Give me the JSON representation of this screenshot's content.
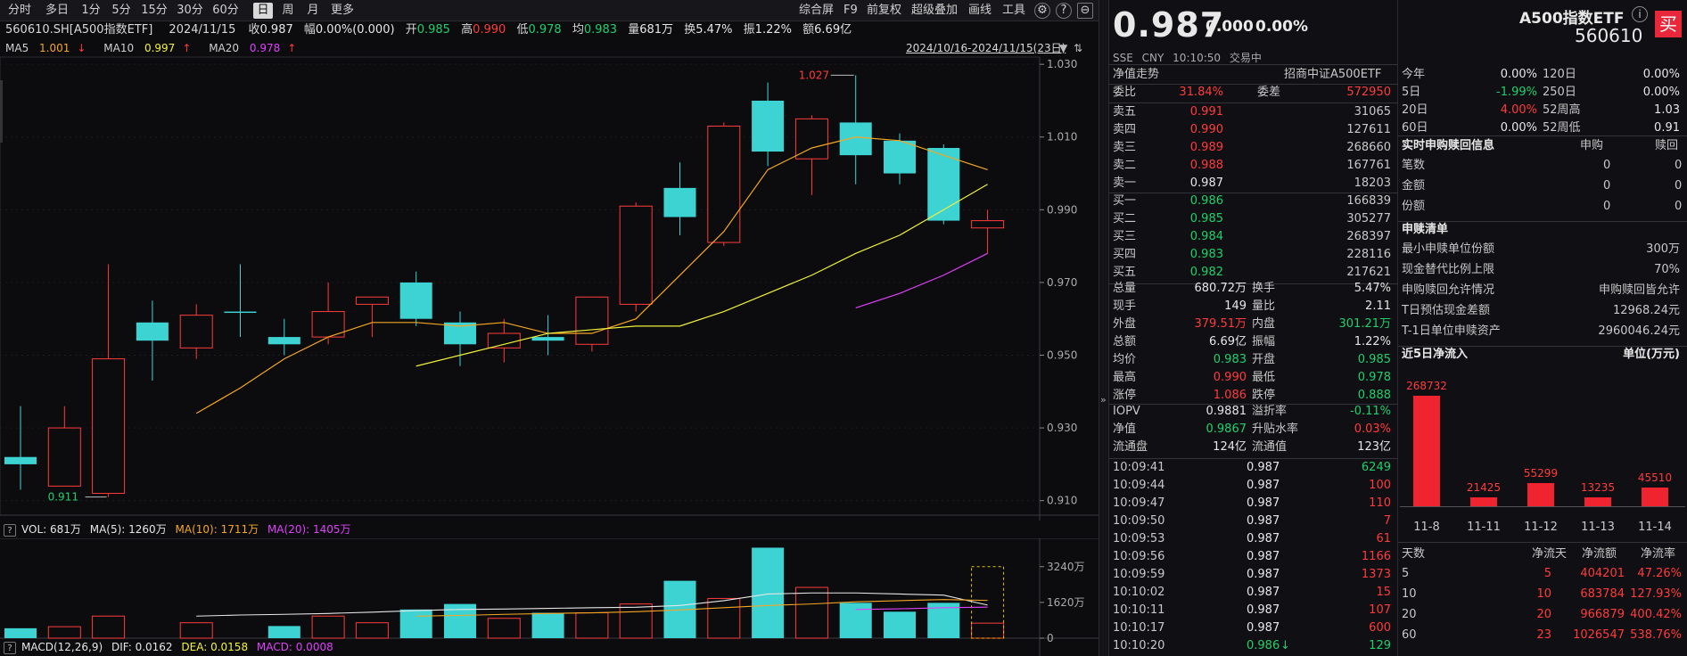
{
  "toolbar": {
    "periods": [
      "分时",
      "多日",
      "1分",
      "5分",
      "15分",
      "30分",
      "60分",
      "日",
      "周",
      "月",
      "更多"
    ],
    "active_period": "日",
    "tools": [
      "综合屏",
      "F9",
      "前复权",
      "超级叠加",
      "画线",
      "工具"
    ]
  },
  "infobar": {
    "code": "560610.SH[A500指数ETF]",
    "date": "2024/11/15",
    "close_label": "收",
    "close": "0.987",
    "change_label": "幅",
    "change": "0.00%(0.000)",
    "open_label": "开",
    "open": "0.985",
    "high_label": "高",
    "high": "0.990",
    "low_label": "低",
    "low": "0.978",
    "avg_label": "均",
    "avg": "0.983",
    "vol_label": "量",
    "vol": "681万",
    "turnover_label": "换",
    "turnover": "5.47%",
    "amp_label": "振",
    "amp": "1.22%",
    "amount_label": "额",
    "amount": "6.69亿"
  },
  "ma": {
    "ma5_label": "MA5",
    "ma5": "1.001",
    "ma10_label": "MA10",
    "ma10": "0.997",
    "ma20_label": "MA20",
    "ma20": "0.978",
    "ma5_color": "#f5a623",
    "ma10_color": "#f2f23a",
    "ma20_color": "#e040fb"
  },
  "range_text": "2024/10/16-2024/11/15(23日)",
  "price_axis": [
    "1.030",
    "1.010",
    "0.990",
    "0.970",
    "0.950",
    "0.930",
    "0.910"
  ],
  "annotations": {
    "high": "1.027",
    "low": "0.911"
  },
  "volbar": {
    "vol_label": "VOL: 681万",
    "ma5_label": "MA(5): 1260万",
    "ma10_label": "MA(10): 1711万",
    "ma20_label": "MA(20): 1405万"
  },
  "vol_axis": [
    "3240万",
    "1620万",
    "0"
  ],
  "macdbar": {
    "label": "MACD(12,26,9)",
    "dif": "DIF: 0.0162",
    "dea": "DEA: 0.0158",
    "macd": "MACD: 0.0008"
  },
  "chart_data": {
    "type": "candlestick",
    "ylim": [
      0.906,
      1.032
    ],
    "candles": [
      {
        "o": 0.922,
        "h": 0.936,
        "l": 0.913,
        "c": 0.92,
        "v": 450
      },
      {
        "o": 0.914,
        "h": 0.936,
        "l": 0.914,
        "c": 0.93,
        "v": 520
      },
      {
        "o": 0.912,
        "h": 0.975,
        "l": 0.911,
        "c": 0.949,
        "v": 1000
      },
      {
        "o": 0.959,
        "h": 0.965,
        "l": 0.943,
        "c": 0.954,
        "v": 0
      },
      {
        "o": 0.952,
        "h": 0.964,
        "l": 0.949,
        "c": 0.961,
        "v": 700
      },
      {
        "o": 0.962,
        "h": 0.975,
        "l": 0.955,
        "c": 0.962,
        "v": 0
      },
      {
        "o": 0.955,
        "h": 0.96,
        "l": 0.95,
        "c": 0.953,
        "v": 550
      },
      {
        "o": 0.955,
        "h": 0.97,
        "l": 0.953,
        "c": 0.962,
        "v": 1000
      },
      {
        "o": 0.964,
        "h": 0.966,
        "l": 0.955,
        "c": 0.966,
        "v": 700
      },
      {
        "o": 0.97,
        "h": 0.973,
        "l": 0.958,
        "c": 0.96,
        "v": 1300
      },
      {
        "o": 0.959,
        "h": 0.962,
        "l": 0.947,
        "c": 0.953,
        "v": 1550
      },
      {
        "o": 0.952,
        "h": 0.96,
        "l": 0.948,
        "c": 0.956,
        "v": 900
      },
      {
        "o": 0.955,
        "h": 0.961,
        "l": 0.95,
        "c": 0.954,
        "v": 1150
      },
      {
        "o": 0.953,
        "h": 0.966,
        "l": 0.951,
        "c": 0.966,
        "v": 1150
      },
      {
        "o": 0.964,
        "h": 0.992,
        "l": 0.962,
        "c": 0.991,
        "v": 1550
      },
      {
        "o": 0.996,
        "h": 1.003,
        "l": 0.983,
        "c": 0.988,
        "v": 2600
      },
      {
        "o": 0.981,
        "h": 1.014,
        "l": 0.98,
        "c": 1.013,
        "v": 1800
      },
      {
        "o": 1.02,
        "h": 1.025,
        "l": 1.002,
        "c": 1.006,
        "v": 4100
      },
      {
        "o": 1.004,
        "h": 1.016,
        "l": 0.994,
        "c": 1.015,
        "v": 2300
      },
      {
        "o": 1.014,
        "h": 1.027,
        "l": 0.997,
        "c": 1.005,
        "v": 1600
      },
      {
        "o": 1.009,
        "h": 1.011,
        "l": 0.997,
        "c": 1.0,
        "v": 1200
      },
      {
        "o": 1.007,
        "h": 1.008,
        "l": 0.986,
        "c": 0.987,
        "v": 1600
      },
      {
        "o": 0.985,
        "h": 0.99,
        "l": 0.978,
        "c": 0.987,
        "v": 681
      }
    ],
    "ma5": [
      null,
      null,
      null,
      null,
      0.934,
      0.941,
      0.949,
      0.955,
      0.959,
      0.959,
      0.958,
      0.959,
      0.956,
      0.956,
      0.96,
      0.972,
      0.984,
      1.001,
      1.007,
      1.01,
      1.009,
      1.005,
      1.001
    ],
    "ma10": [
      null,
      null,
      null,
      null,
      null,
      null,
      null,
      null,
      null,
      0.947,
      0.95,
      0.953,
      0.956,
      0.957,
      0.958,
      0.958,
      0.962,
      0.967,
      0.972,
      0.978,
      0.983,
      0.99,
      0.997
    ],
    "ma20": [
      null,
      null,
      null,
      null,
      null,
      null,
      null,
      null,
      null,
      null,
      null,
      null,
      null,
      null,
      null,
      null,
      null,
      null,
      null,
      0.963,
      0.967,
      0.972,
      0.978
    ],
    "vol_ylim": [
      0,
      4200
    ]
  },
  "quote": {
    "price": "0.987",
    "change": "0.000",
    "change_pct": "0.00%",
    "name": "A500指数ETF",
    "code": "560610",
    "exchange": "SSE",
    "currency": "CNY",
    "time": "10:10:50",
    "status": "交易中",
    "buy_label": "买"
  },
  "nav_section": {
    "title": "净值走势",
    "manager": "招商中证A500ETF"
  },
  "order_ratio": {
    "label1": "委比",
    "val1": "31.84%",
    "label2": "委差",
    "val2": "572950"
  },
  "asks": [
    {
      "label": "卖五",
      "price": "0.991",
      "vol": "31065"
    },
    {
      "label": "卖四",
      "price": "0.990",
      "vol": "127611"
    },
    {
      "label": "卖三",
      "price": "0.989",
      "vol": "268660"
    },
    {
      "label": "卖二",
      "price": "0.988",
      "vol": "167761"
    },
    {
      "label": "卖一",
      "price": "0.987",
      "vol": "18203"
    }
  ],
  "bids": [
    {
      "label": "买一",
      "price": "0.986",
      "vol": "166839"
    },
    {
      "label": "买二",
      "price": "0.985",
      "vol": "305277"
    },
    {
      "label": "买三",
      "price": "0.984",
      "vol": "268397"
    },
    {
      "label": "买四",
      "price": "0.983",
      "vol": "228116"
    },
    {
      "label": "买五",
      "price": "0.982",
      "vol": "217621"
    }
  ],
  "stats": [
    {
      "l1": "总量",
      "v1": "680.72万",
      "c1": "white",
      "l2": "换手",
      "v2": "5.47%",
      "c2": "white"
    },
    {
      "l1": "现手",
      "v1": "149",
      "c1": "white",
      "l2": "量比",
      "v2": "2.11",
      "c2": "white"
    },
    {
      "l1": "外盘",
      "v1": "379.51万",
      "c1": "red",
      "l2": "内盘",
      "v2": "301.21万",
      "c2": "green"
    },
    {
      "l1": "总额",
      "v1": "6.69亿",
      "c1": "white",
      "l2": "振幅",
      "v2": "1.22%",
      "c2": "white"
    },
    {
      "l1": "均价",
      "v1": "0.983",
      "c1": "green",
      "l2": "开盘",
      "v2": "0.985",
      "c2": "green"
    },
    {
      "l1": "最高",
      "v1": "0.990",
      "c1": "red",
      "l2": "最低",
      "v2": "0.978",
      "c2": "green"
    },
    {
      "l1": "涨停",
      "v1": "1.086",
      "c1": "red",
      "l2": "跌停",
      "v2": "0.888",
      "c2": "green"
    }
  ],
  "iopv": [
    {
      "l1": "IOPV",
      "v1": "0.9881",
      "c1": "white",
      "l2": "溢折率",
      "v2": "-0.11%",
      "c2": "green"
    },
    {
      "l1": "净值",
      "v1": "0.9867",
      "c1": "green",
      "l2": "升贴水率",
      "v2": "0.03%",
      "c2": "red"
    },
    {
      "l1": "流通盘",
      "v1": "124亿",
      "c1": "white",
      "l2": "流通值",
      "v2": "123亿",
      "c2": "white"
    }
  ],
  "ticks": [
    {
      "t": "10:09:41",
      "p": "0.987",
      "v": "6249",
      "vc": "green",
      "arrow": ""
    },
    {
      "t": "10:09:44",
      "p": "0.987",
      "v": "100",
      "vc": "red",
      "arrow": ""
    },
    {
      "t": "10:09:47",
      "p": "0.987",
      "v": "110",
      "vc": "red",
      "arrow": ""
    },
    {
      "t": "10:09:50",
      "p": "0.987",
      "v": "7",
      "vc": "red",
      "arrow": ""
    },
    {
      "t": "10:09:53",
      "p": "0.987",
      "v": "61",
      "vc": "red",
      "arrow": ""
    },
    {
      "t": "10:09:56",
      "p": "0.987",
      "v": "1166",
      "vc": "red",
      "arrow": ""
    },
    {
      "t": "10:09:59",
      "p": "0.987",
      "v": "1373",
      "vc": "red",
      "arrow": ""
    },
    {
      "t": "10:10:02",
      "p": "0.987",
      "v": "15",
      "vc": "red",
      "arrow": ""
    },
    {
      "t": "10:10:11",
      "p": "0.987",
      "v": "107",
      "vc": "red",
      "arrow": ""
    },
    {
      "t": "10:10:17",
      "p": "0.987",
      "v": "600",
      "vc": "red",
      "arrow": ""
    },
    {
      "t": "10:10:20",
      "p": "0.986",
      "v": "129",
      "vc": "green",
      "arrow": "↓"
    }
  ],
  "perf": [
    {
      "l1": "今年",
      "v1": "0.00%",
      "c1": "white",
      "l2": "120日",
      "v2": "0.00%",
      "c2": "white"
    },
    {
      "l1": "5日",
      "v1": "-1.99%",
      "c1": "green",
      "l2": "250日",
      "v2": "0.00%",
      "c2": "white"
    },
    {
      "l1": "20日",
      "v1": "4.00%",
      "c1": "red",
      "l2": "52周高",
      "v2": "1.03",
      "c2": "white"
    },
    {
      "l1": "60日",
      "v1": "0.00%",
      "c1": "white",
      "l2": "52周低",
      "v2": "0.91",
      "c2": "white"
    }
  ],
  "realtime": {
    "title": "实时申购赎回信息",
    "h1": "申购",
    "h2": "赎回",
    "rows": [
      {
        "l": "笔数",
        "a": "0",
        "b": "0"
      },
      {
        "l": "金额",
        "a": "0",
        "b": "0"
      },
      {
        "l": "份额",
        "a": "0",
        "b": "0"
      }
    ]
  },
  "pcf": {
    "title": "申赎清单",
    "rows": [
      {
        "l": "最小申赎单位份额",
        "v": "300万"
      },
      {
        "l": "现金替代比例上限",
        "v": "70%"
      },
      {
        "l": "申购赎回允许情况",
        "v": "申购赎回皆允许"
      },
      {
        "l": "T日预估现金差额",
        "v": "12968.24元"
      },
      {
        "l": "T-1日单位申赎资产",
        "v": "2960046.24元"
      }
    ]
  },
  "flow": {
    "title": "近5日净流入",
    "unit": "单位(万元)",
    "bars": [
      {
        "date": "11-8",
        "value": 268732
      },
      {
        "date": "11-11",
        "value": 21425
      },
      {
        "date": "11-12",
        "value": 55299
      },
      {
        "date": "11-13",
        "value": 13235
      },
      {
        "date": "11-14",
        "value": 45510
      }
    ],
    "color": "#f0242f"
  },
  "flow_table": {
    "headers": [
      "天数",
      "净流天",
      "净流额",
      "净流率"
    ],
    "rows": [
      {
        "d": "5",
        "n": "5",
        "a": "404201",
        "r": "47.26%"
      },
      {
        "d": "10",
        "n": "10",
        "a": "683784",
        "r": "127.93%"
      },
      {
        "d": "20",
        "n": "20",
        "a": "966879",
        "r": "400.42%"
      },
      {
        "d": "60",
        "n": "23",
        "a": "1026547",
        "r": "538.76%"
      }
    ]
  },
  "colors": {
    "up": "#ff3b3b",
    "down": "#3ed3d3",
    "accent": "#e8273b"
  }
}
